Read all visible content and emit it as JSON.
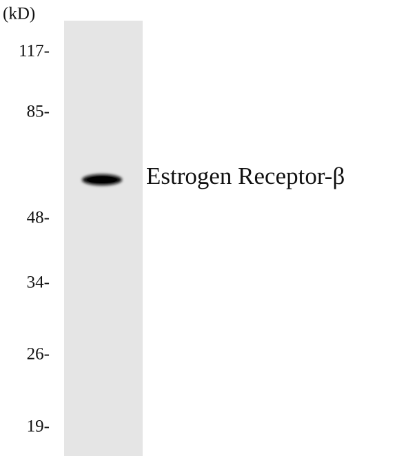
{
  "unit": "(kD)",
  "markers": [
    "117-",
    "85-",
    "48-",
    "34-",
    "26-",
    "19-"
  ],
  "band_label": "Estrogen Receptor-β"
}
